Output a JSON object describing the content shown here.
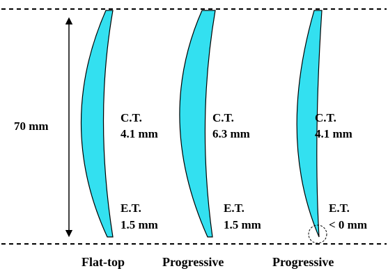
{
  "dimension_label": "70 mm",
  "colors": {
    "lens_fill": "#33e0f0",
    "stroke": "#000000",
    "background": "#ffffff"
  },
  "lenses": [
    {
      "ct_label": "C.T.",
      "ct_value": "4.1 mm",
      "et_label": "E.T.",
      "et_value": "1.5 mm",
      "caption": "Flat-top"
    },
    {
      "ct_label": "C.T.",
      "ct_value": "6.3 mm",
      "et_label": "E.T.",
      "et_value": "1.5 mm",
      "caption": "Progressive"
    },
    {
      "ct_label": "C.T.",
      "ct_value": "4.1 mm",
      "et_label": "E.T.",
      "et_value": "< 0 mm",
      "caption": "Progressive"
    }
  ]
}
